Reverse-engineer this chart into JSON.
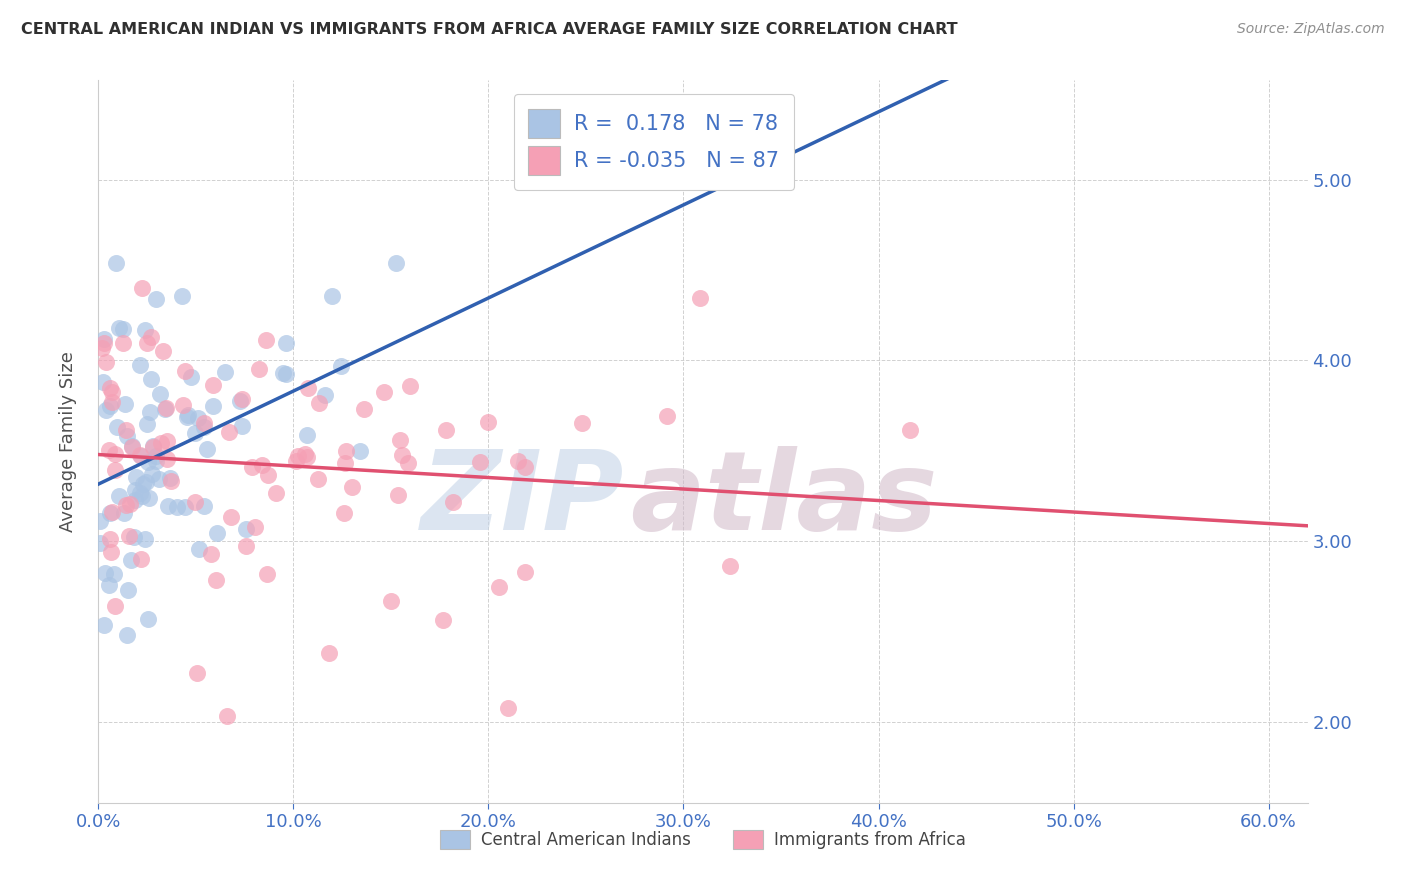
{
  "title": "CENTRAL AMERICAN INDIAN VS IMMIGRANTS FROM AFRICA AVERAGE FAMILY SIZE CORRELATION CHART",
  "source": "Source: ZipAtlas.com",
  "ylabel": "Average Family Size",
  "xlabel_ticks": [
    "0.0%",
    "10.0%",
    "20.0%",
    "30.0%",
    "40.0%",
    "50.0%",
    "60.0%"
  ],
  "ytick_values": [
    2.0,
    3.0,
    4.0,
    5.0
  ],
  "xlim": [
    0.0,
    0.62
  ],
  "ylim": [
    1.55,
    5.55
  ],
  "legend_r1": "R =  0.178",
  "legend_n1": "N = 78",
  "legend_r2": "R = -0.035",
  "legend_n2": "N = 87",
  "series1_label": "Central American Indians",
  "series2_label": "Immigrants from Africa",
  "series1_color": "#aac4e4",
  "series2_color": "#f5a0b5",
  "series1_line_color": "#3060b0",
  "series2_line_color": "#e05070",
  "title_color": "#303030",
  "source_color": "#909090",
  "axis_label_color": "#505050",
  "tick_color": "#4472c4",
  "grid_color": "#cccccc",
  "background_color": "#ffffff",
  "legend_r_color": "#4472c4",
  "legend_n_color": "#4472c4"
}
